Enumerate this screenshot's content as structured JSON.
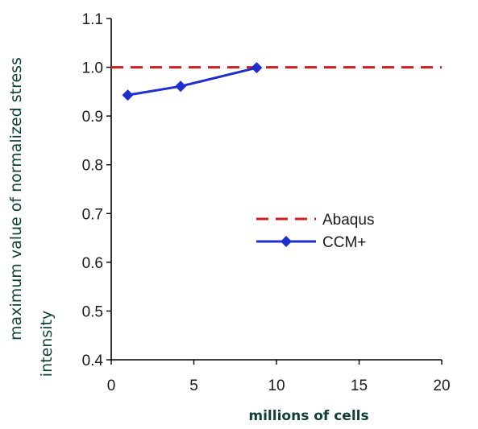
{
  "chart_data": {
    "type": "line",
    "xlabel": "millions of cells",
    "ylabel_lines": [
      "maximum value of normalized stress",
      "intensity"
    ],
    "xlim": [
      0,
      20
    ],
    "ylim": [
      0.4,
      1.1
    ],
    "xticks": [
      0,
      5,
      10,
      15,
      20
    ],
    "yticks": [
      0.4,
      0.5,
      0.6,
      0.7,
      0.8,
      0.9,
      1.0,
      1.1
    ],
    "ytick_labels": [
      "0.4",
      "0.5",
      "0.6",
      "0.7",
      "0.8",
      "0.9",
      "1.0",
      "1.1"
    ],
    "grid": false,
    "legend_position": "center-right",
    "series": [
      {
        "name": "Abaqus",
        "style": "dashed",
        "marker": "none",
        "color": "#cc1f1f",
        "x": [
          0,
          20
        ],
        "y": [
          1.0,
          1.0
        ]
      },
      {
        "name": "CCM+",
        "style": "solid",
        "marker": "diamond",
        "color": "#1f2fcc",
        "x": [
          1.0,
          4.2,
          8.8
        ],
        "y": [
          0.943,
          0.961,
          0.999
        ]
      }
    ]
  }
}
